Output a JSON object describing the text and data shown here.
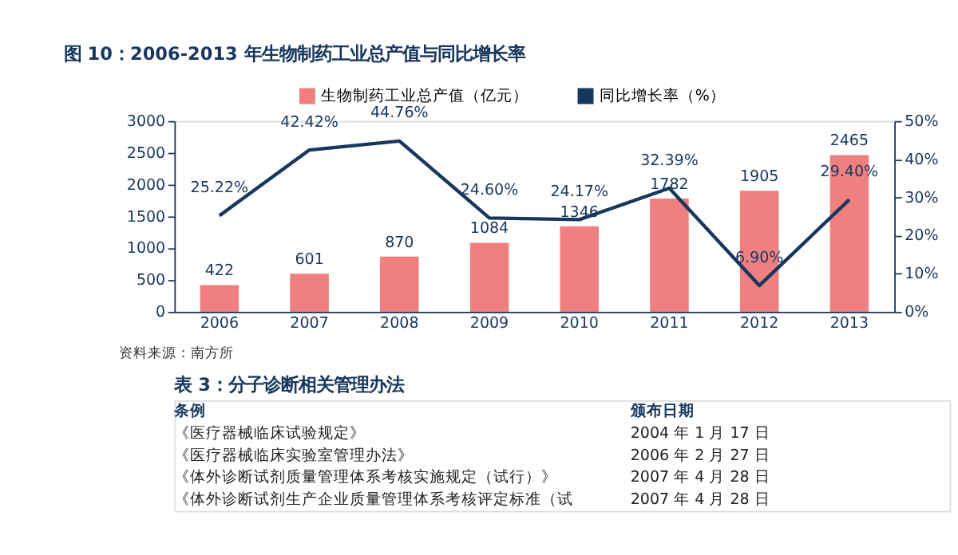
{
  "chart_data": [
    {
      "type": "bar",
      "title": "图 10：2006-2013 年生物制药工业总产值与同比增长率",
      "categories": [
        "2006",
        "2007",
        "2008",
        "2009",
        "2010",
        "2011",
        "2012",
        "2013"
      ],
      "series": [
        {
          "name": "生物制药工业总产值（亿元）",
          "color": "#f08080",
          "values": [
            422,
            601,
            870,
            1084,
            1346,
            1782,
            1905,
            2465
          ],
          "value_labels": [
            "422",
            "601",
            "870",
            "1084",
            "1346",
            "1782",
            "1905",
            "2465"
          ]
        },
        {
          "name": "同比增长率（%）",
          "type": "line",
          "axis": "y2",
          "color": "#17375e",
          "values": [
            25.22,
            42.42,
            44.76,
            24.6,
            24.17,
            32.39,
            6.9,
            29.4
          ],
          "value_labels": [
            "25.22%",
            "42.42%",
            "44.76%",
            "24.60%",
            "24.17%",
            "32.39%",
            "6.90%",
            "29.40%"
          ]
        }
      ],
      "ylim": [
        0,
        3000
      ],
      "yticks": [
        0,
        500,
        1000,
        1500,
        2000,
        2500,
        3000
      ],
      "y2lim": [
        0,
        50
      ],
      "y2ticks": [
        {
          "value": 0,
          "label": "0%"
        },
        {
          "value": 10,
          "label": "10%"
        },
        {
          "value": 20,
          "label": "20%"
        },
        {
          "value": 30,
          "label": "30%"
        },
        {
          "value": 40,
          "label": "40%"
        },
        {
          "value": 50,
          "label": "50%"
        }
      ],
      "legend": "top",
      "annotations": [
        "资料来源：南方所"
      ]
    },
    {
      "type": "other",
      "title": "表 3：分子诊断相关管理办法",
      "annotations": [
        "条例",
        "颁布日期",
        "《医疗器械临床试验规定》",
        "2004 年 1 月 17 日",
        "《医疗器械临床实验室管理办法》",
        "2006 年 2 月 27 日",
        "《体外诊断试剂质量管理体系考核实施规定（试行）》",
        "2007 年 4 月 28 日",
        "《体外诊断试剂生产企业质量管理体系考核评定标准（试",
        "2007 年 4 月 28 日"
      ]
    }
  ]
}
